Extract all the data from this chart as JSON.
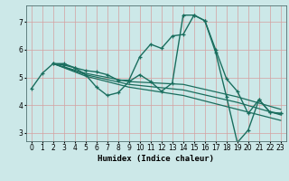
{
  "title": "",
  "xlabel": "Humidex (Indice chaleur)",
  "ylabel": "",
  "bg_color": "#cce8e8",
  "grid_color": "#d4a0a0",
  "line_color": "#1a6e5e",
  "xlim": [
    -0.5,
    23.5
  ],
  "ylim": [
    2.7,
    7.6
  ],
  "xticks": [
    0,
    1,
    2,
    3,
    4,
    5,
    6,
    7,
    8,
    9,
    10,
    11,
    12,
    13,
    14,
    15,
    16,
    17,
    18,
    19,
    20,
    21,
    22,
    23
  ],
  "yticks": [
    3,
    4,
    5,
    6,
    7
  ],
  "series": [
    {
      "points": [
        [
          0,
          4.6
        ],
        [
          1,
          5.15
        ],
        [
          2,
          5.5
        ],
        [
          3,
          5.5
        ],
        [
          4,
          5.35
        ],
        [
          5,
          5.25
        ],
        [
          6,
          5.2
        ],
        [
          7,
          5.1
        ],
        [
          8,
          4.9
        ],
        [
          9,
          4.9
        ],
        [
          10,
          5.75
        ],
        [
          11,
          6.2
        ],
        [
          12,
          6.05
        ],
        [
          13,
          6.5
        ],
        [
          14,
          6.55
        ],
        [
          15,
          7.25
        ],
        [
          16,
          7.05
        ],
        [
          17,
          6.0
        ],
        [
          18,
          4.95
        ],
        [
          19,
          4.5
        ],
        [
          20,
          3.7
        ],
        [
          21,
          4.2
        ],
        [
          22,
          3.75
        ],
        [
          23,
          3.7
        ]
      ],
      "marker": true,
      "linewidth": 1.0
    },
    {
      "points": [
        [
          2,
          5.5
        ],
        [
          3,
          5.45
        ],
        [
          4,
          5.35
        ],
        [
          5,
          5.1
        ],
        [
          6,
          4.65
        ],
        [
          7,
          4.35
        ],
        [
          8,
          4.45
        ],
        [
          9,
          4.85
        ],
        [
          10,
          5.1
        ],
        [
          11,
          4.85
        ],
        [
          12,
          4.5
        ],
        [
          13,
          4.8
        ],
        [
          14,
          7.25
        ],
        [
          15,
          7.25
        ],
        [
          16,
          7.05
        ],
        [
          17,
          5.9
        ],
        [
          18,
          4.3
        ],
        [
          19,
          2.65
        ],
        [
          20,
          3.1
        ],
        [
          21,
          4.2
        ],
        [
          22,
          3.75
        ],
        [
          23,
          3.7
        ]
      ],
      "marker": true,
      "linewidth": 1.0
    },
    {
      "points": [
        [
          2,
          5.5
        ],
        [
          5,
          5.15
        ],
        [
          9,
          4.85
        ],
        [
          14,
          4.75
        ],
        [
          19,
          4.3
        ],
        [
          23,
          3.85
        ]
      ],
      "marker": false,
      "linewidth": 0.9
    },
    {
      "points": [
        [
          2,
          5.5
        ],
        [
          5,
          5.1
        ],
        [
          9,
          4.75
        ],
        [
          14,
          4.55
        ],
        [
          19,
          4.1
        ],
        [
          23,
          3.65
        ]
      ],
      "marker": false,
      "linewidth": 0.9
    },
    {
      "points": [
        [
          2,
          5.5
        ],
        [
          5,
          5.05
        ],
        [
          9,
          4.65
        ],
        [
          14,
          4.35
        ],
        [
          19,
          3.85
        ],
        [
          23,
          3.45
        ]
      ],
      "marker": false,
      "linewidth": 0.9
    }
  ]
}
